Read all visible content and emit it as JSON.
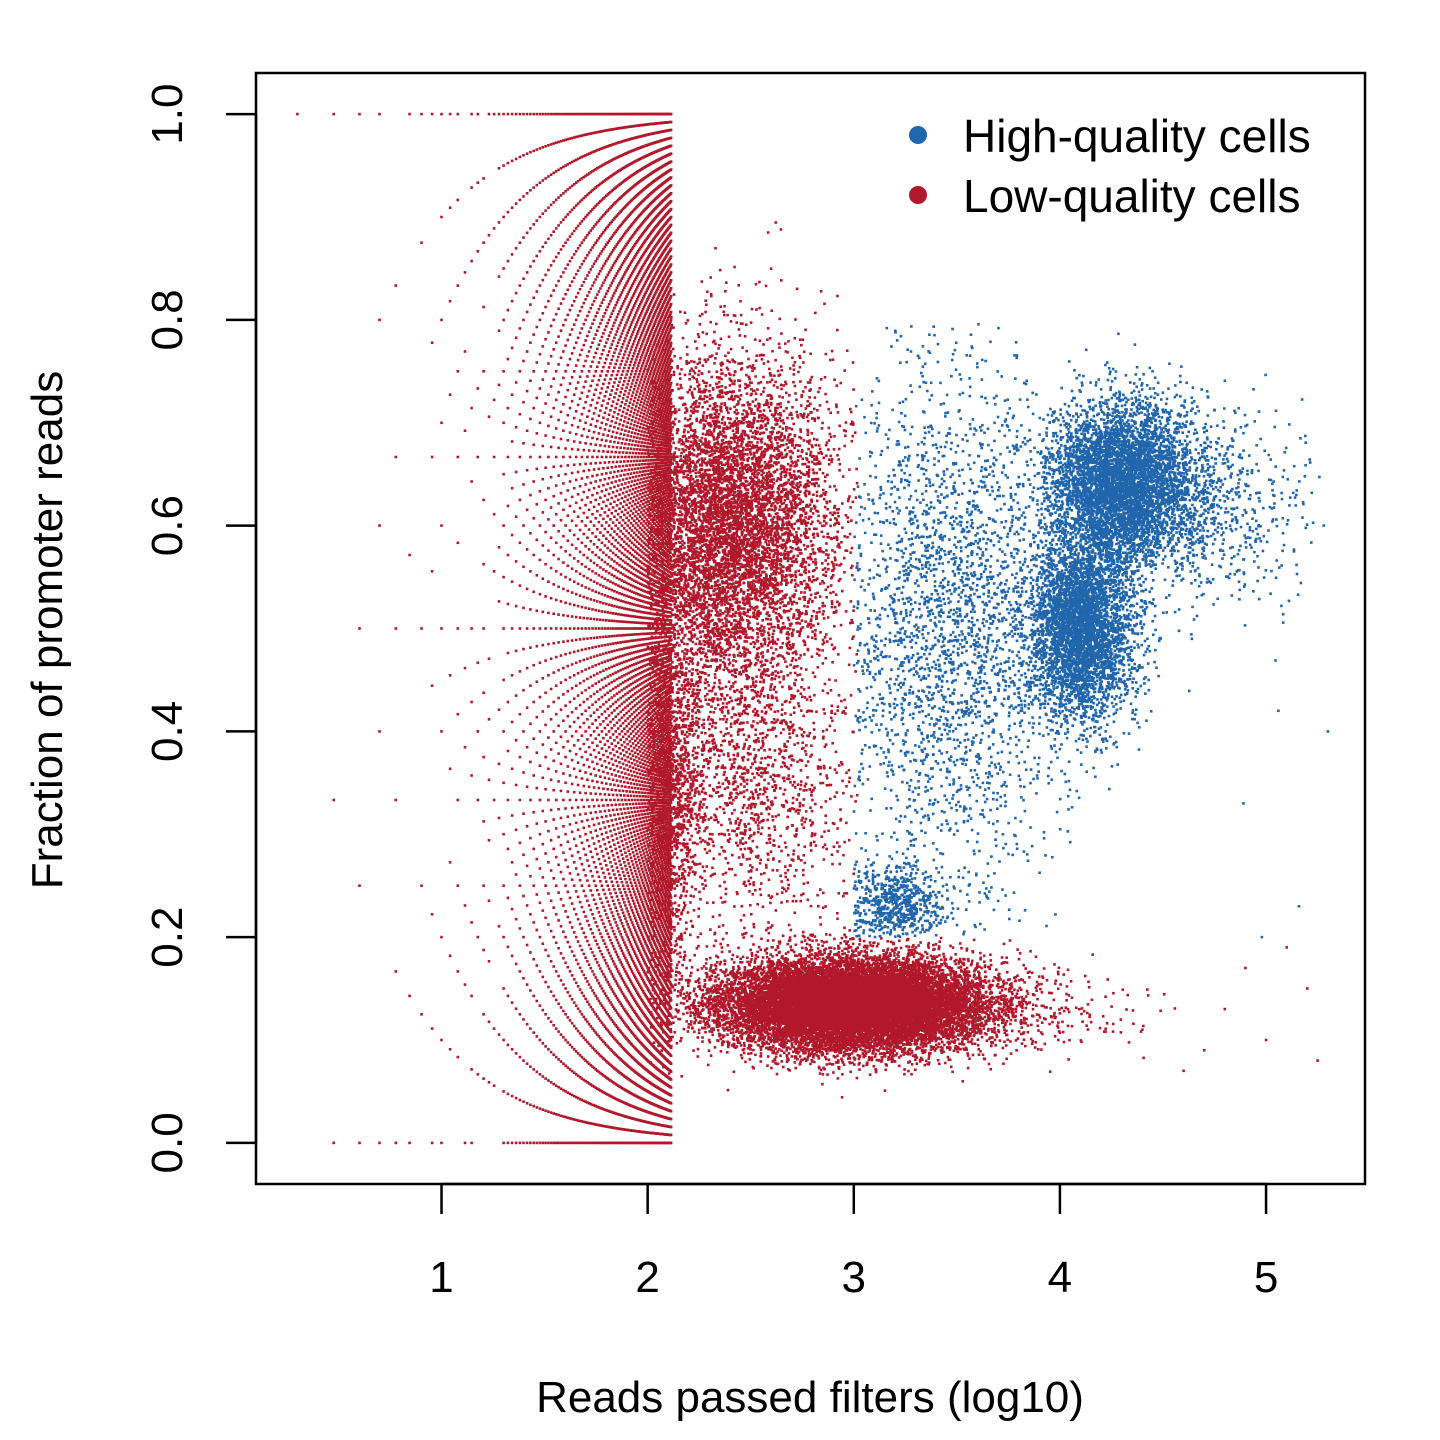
{
  "chart_data": {
    "type": "scatter",
    "title": "",
    "xlabel": "Reads passed filters (log10)",
    "ylabel": "Fraction of promoter reads",
    "xlim": [
      0.1,
      5.48
    ],
    "ylim": [
      -0.04,
      1.04
    ],
    "x_ticks": [
      1,
      2,
      3,
      4,
      5
    ],
    "x_tick_labels": [
      "1",
      "2",
      "3",
      "4",
      "5"
    ],
    "y_ticks": [
      0.0,
      0.2,
      0.4,
      0.6,
      0.8,
      1.0
    ],
    "y_tick_labels": [
      "0.0",
      "0.2",
      "0.4",
      "0.6",
      "0.8",
      "1.0"
    ],
    "grid": false,
    "legend_position": "top-right",
    "series": [
      {
        "name": "High-quality cells",
        "color": "#2166ac",
        "clusters": [
          {
            "x_center": 4.3,
            "y_center": 0.64,
            "x_sd": 0.18,
            "y_sd": 0.04,
            "weight": 5000
          },
          {
            "x_center": 4.1,
            "y_center": 0.5,
            "x_sd": 0.13,
            "y_sd": 0.045,
            "weight": 4000
          },
          {
            "x_center": 3.45,
            "y_center": 0.5,
            "x_sd": 0.3,
            "y_sd": 0.13,
            "weight": 2800
          },
          {
            "x_center": 3.2,
            "y_center": 0.23,
            "x_sd": 0.12,
            "y_sd": 0.02,
            "weight": 700
          },
          {
            "x_center": 4.7,
            "y_center": 0.62,
            "x_sd": 0.25,
            "y_sd": 0.05,
            "weight": 700
          }
        ],
        "points": [
          {
            "x": 5.28,
            "y": 0.6
          },
          {
            "x": 5.3,
            "y": 0.4
          },
          {
            "x": 5.16,
            "y": 0.23
          },
          {
            "x": 4.98,
            "y": 0.2
          },
          {
            "x": 4.89,
            "y": 0.33
          },
          {
            "x": 5.06,
            "y": 0.42
          }
        ]
      },
      {
        "name": "Low-quality cells",
        "color": "#b2182b",
        "clusters": [
          {
            "x_center": 3.0,
            "y_center": 0.135,
            "x_sd": 0.32,
            "y_sd": 0.022,
            "weight": 16000
          },
          {
            "x_center": 2.4,
            "y_center": 0.6,
            "x_sd": 0.25,
            "y_sd": 0.08,
            "weight": 7000
          },
          {
            "x_center": 2.1,
            "y_center": 0.35,
            "x_sd": 0.08,
            "y_sd": 0.1,
            "weight": 1500
          },
          {
            "x_center": 2.5,
            "y_center": 0.35,
            "x_sd": 0.25,
            "y_sd": 0.08,
            "weight": 1500
          },
          {
            "x_center": 3.9,
            "y_center": 0.125,
            "x_sd": 0.3,
            "y_sd": 0.02,
            "weight": 150
          }
        ],
        "lattice": "fractions k/n for integer read counts n (x = log10 n), k = 0..n",
        "points": [
          {
            "x": 5.2,
            "y": 0.15
          },
          {
            "x": 5.25,
            "y": 0.08
          },
          {
            "x": 5.0,
            "y": 0.1
          },
          {
            "x": 4.8,
            "y": 0.13
          },
          {
            "x": 4.6,
            "y": 0.07
          },
          {
            "x": 5.1,
            "y": 0.19
          },
          {
            "x": 4.9,
            "y": 0.17
          },
          {
            "x": 4.4,
            "y": 0.11
          },
          {
            "x": 4.7,
            "y": 0.09
          }
        ]
      }
    ]
  }
}
